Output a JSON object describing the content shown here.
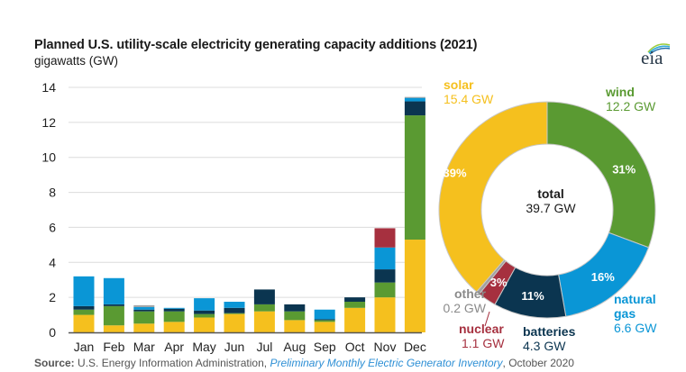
{
  "header": {
    "title": "Planned U.S. utility-scale electricity generating capacity additions (2021)",
    "subtitle": "gigawatts (GW)",
    "logo_text": "eia"
  },
  "source": {
    "prefix": "Source:",
    "org": " U.S. Energy Information Administration, ",
    "publication": "Preliminary Monthly Electric Generator Inventory",
    "date": ", October 2020"
  },
  "colors": {
    "solar": "#f5c01e",
    "wind": "#5a9a32",
    "batteries": "#0b3550",
    "natural_gas": "#0a96d6",
    "nuclear": "#a6303f",
    "other": "#a0a0a0"
  },
  "chart_data": [
    {
      "type": "bar",
      "stacked": true,
      "title": "Planned U.S. utility-scale electricity generating capacity additions (2021)",
      "ylabel": "gigawatts (GW)",
      "xlabel": "",
      "ylim": [
        0,
        14
      ],
      "yticks": [
        0,
        2,
        4,
        6,
        8,
        10,
        12,
        14
      ],
      "grid": true,
      "categories": [
        "Jan",
        "Feb",
        "Mar",
        "Apr",
        "May",
        "Jun",
        "Jul",
        "Aug",
        "Sep",
        "Oct",
        "Nov",
        "Dec"
      ],
      "series": [
        {
          "name": "solar",
          "key": "solar",
          "values": [
            1.0,
            0.4,
            0.5,
            0.6,
            0.85,
            1.05,
            1.2,
            0.7,
            0.6,
            1.4,
            2.0,
            5.3
          ]
        },
        {
          "name": "wind",
          "key": "wind",
          "values": [
            0.3,
            1.1,
            0.7,
            0.6,
            0.2,
            0.05,
            0.4,
            0.5,
            0.1,
            0.35,
            0.85,
            7.1
          ]
        },
        {
          "name": "batteries",
          "key": "batteries",
          "values": [
            0.2,
            0.1,
            0.1,
            0.15,
            0.2,
            0.3,
            0.85,
            0.4,
            0.05,
            0.25,
            0.75,
            0.8
          ]
        },
        {
          "name": "natural gas",
          "key": "natural_gas",
          "values": [
            1.7,
            1.5,
            0.15,
            0.05,
            0.7,
            0.35,
            0.0,
            0.0,
            0.55,
            0.0,
            1.25,
            0.2
          ]
        },
        {
          "name": "nuclear",
          "key": "nuclear",
          "values": [
            0,
            0,
            0,
            0,
            0,
            0,
            0,
            0,
            0,
            0,
            1.1,
            0
          ]
        },
        {
          "name": "other",
          "key": "other",
          "values": [
            0,
            0,
            0.1,
            0,
            0,
            0,
            0,
            0,
            0,
            0,
            0,
            0.05
          ]
        }
      ]
    },
    {
      "type": "pie",
      "donut": true,
      "center_title": "total",
      "center_value": "39.7 GW",
      "slices": [
        {
          "name": "solar",
          "key": "solar",
          "value": 15.4,
          "value_label": "15.4 GW",
          "percent_label": "39%"
        },
        {
          "name": "wind",
          "key": "wind",
          "value": 12.2,
          "value_label": "12.2 GW",
          "percent_label": "31%"
        },
        {
          "name": "natural gas",
          "key": "natural_gas",
          "value": 6.6,
          "value_label": "6.6 GW",
          "percent_label": "16%",
          "name_lines": [
            "natural",
            "gas"
          ]
        },
        {
          "name": "batteries",
          "key": "batteries",
          "value": 4.3,
          "value_label": "4.3 GW",
          "percent_label": "11%"
        },
        {
          "name": "nuclear",
          "key": "nuclear",
          "value": 1.1,
          "value_label": "1.1 GW",
          "percent_label": "3%"
        },
        {
          "name": "other",
          "key": "other",
          "value": 0.2,
          "value_label": "0.2 GW",
          "percent_label": ""
        }
      ]
    }
  ]
}
